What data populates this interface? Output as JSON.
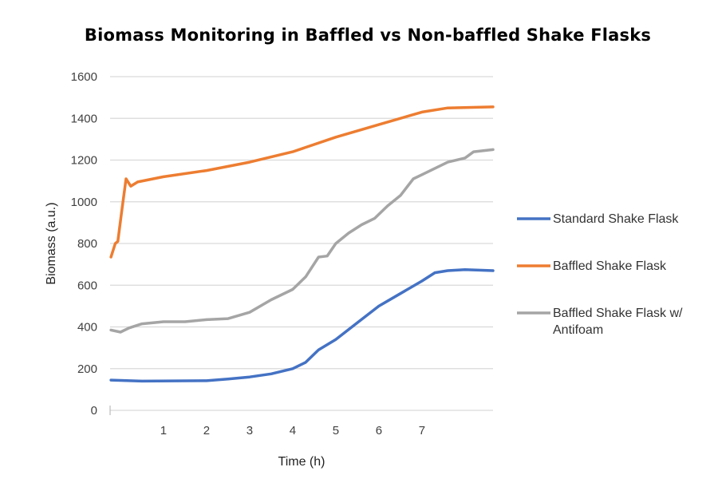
{
  "chart_data": {
    "type": "line",
    "title": "Biomass Monitoring in Baffled vs Non-baffled Shake Flasks",
    "xlabel": "Time (h)",
    "ylabel": "Biomass (a.u.)",
    "xlim": [
      -0.24,
      8.65
    ],
    "ylim": [
      0,
      1600
    ],
    "xticks": [
      "1",
      "2",
      "3",
      "4",
      "5",
      "6",
      "7"
    ],
    "yticks": [
      "0",
      "200",
      "400",
      "600",
      "800",
      "1000",
      "1200",
      "1400",
      "1600"
    ],
    "grid": "horizontal",
    "legend": "right",
    "series": [
      {
        "name": "Standard Shake Flask",
        "color": "#4472C4",
        "x": [
          -0.22,
          0.5,
          2,
          2.5,
          3,
          3.5,
          4,
          4.3,
          4.6,
          5,
          5.5,
          6,
          6.5,
          7,
          7.3,
          7.6,
          8,
          8.65
        ],
        "y": [
          145,
          140,
          142,
          150,
          160,
          175,
          200,
          230,
          290,
          340,
          420,
          500,
          560,
          620,
          660,
          670,
          675,
          670
        ]
      },
      {
        "name": "Baffled Shake Flask",
        "color": "#ED7D31",
        "x": [
          -0.22,
          -0.12,
          -0.06,
          0.04,
          0.13,
          0.24,
          0.4,
          1,
          2,
          3,
          4,
          5,
          6,
          7,
          7.6,
          8.65
        ],
        "y": [
          735,
          800,
          810,
          970,
          1110,
          1075,
          1095,
          1120,
          1150,
          1190,
          1240,
          1310,
          1370,
          1430,
          1450,
          1455
        ]
      },
      {
        "name": "Baffled Shake Flask w/ Antifoam",
        "color": "#A5A5A5",
        "x": [
          -0.22,
          0,
          0.2,
          0.5,
          1,
          1.5,
          2,
          2.5,
          3,
          3.5,
          4,
          4.3,
          4.6,
          4.8,
          5,
          5.3,
          5.6,
          5.9,
          6.2,
          6.5,
          6.8,
          7,
          7.3,
          7.6,
          8,
          8.2,
          8.65
        ],
        "y": [
          385,
          375,
          395,
          415,
          425,
          425,
          435,
          440,
          470,
          530,
          580,
          640,
          735,
          740,
          800,
          850,
          890,
          920,
          980,
          1030,
          1110,
          1130,
          1160,
          1190,
          1210,
          1240,
          1250
        ]
      }
    ]
  }
}
